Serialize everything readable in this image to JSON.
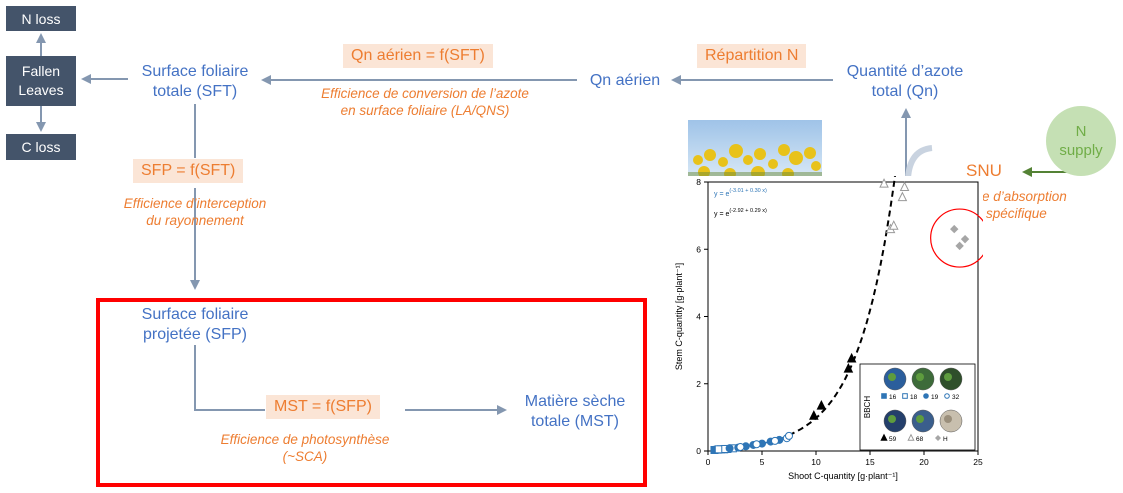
{
  "left_boxes": {
    "n_loss": "N loss",
    "fallen_leaves_1": "Fallen",
    "fallen_leaves_2": "Leaves",
    "c_loss": "C loss"
  },
  "nodes": {
    "sft_1": "Surface foliaire",
    "sft_2": "totale (SFT)",
    "sfp_1": "Surface foliaire",
    "sfp_2": "projetée (SFP)",
    "mst_1": "Matière sèche",
    "mst_2": "totale (MST)",
    "qn_aerien": "Qn aérien",
    "qn_total_1": "Quantité d’azote",
    "qn_total_2": "total (Qn)",
    "n_supply_1": "N",
    "n_supply_2": "supply",
    "snu": "SNU"
  },
  "formulas": {
    "qn_aerien_f": "Qn aérien = f(SFT)",
    "repartition": "Répartition N",
    "sfp_f": "SFP = f(SFT)",
    "mst_f": "MST = f(SFP)"
  },
  "notes": {
    "conv_1": "Efficience de conversion de l’azote",
    "conv_2": "en surface foliaire (LA/QNS)",
    "interc_1": "Efficience d’interception",
    "interc_2": "du rayonnement",
    "photo_1": "Efficience de photosynthèse",
    "photo_2": "(~SCA)",
    "absorp_1": "e d’absorption",
    "absorp_2": "spécifique"
  },
  "colors": {
    "dark_box": "#44546a",
    "node_blue": "#4472c4",
    "formula_bg": "#fbe5d6",
    "formula_text": "#ed7d31",
    "arrow": "#8497b0",
    "highlight_red": "#ff0000",
    "n_supply_fill": "#c5e0b4",
    "n_supply_text": "#70ad47"
  },
  "chart_data": {
    "type": "scatter",
    "xlabel": "Shoot C-quantity [g·plant⁻¹]",
    "ylabel": "Stem C-quantity [g·plant⁻¹]",
    "xlim": [
      0,
      25
    ],
    "ylim": [
      0,
      8
    ],
    "xticks": [
      "0",
      "5",
      "10",
      "15",
      "20",
      "25"
    ],
    "yticks": [
      "0",
      "2",
      "4",
      "6",
      "8"
    ],
    "equations": [
      {
        "prefix": "y = e",
        "exponent": "(-3.01 + 0.30 x)",
        "color": "#2e75b6"
      },
      {
        "prefix": "y = e",
        "exponent": "(-2.92 + 0.29 x)",
        "color": "#000000"
      }
    ],
    "fit_curves": [
      {
        "a": -3.01,
        "b": 0.3,
        "x_range": [
          0.5,
          7.5
        ],
        "style": "solid",
        "color": "#2e75b6"
      },
      {
        "a": -2.92,
        "b": 0.29,
        "x_range": [
          7.5,
          18.3
        ],
        "style": "dashed",
        "color": "#000000"
      }
    ],
    "series": [
      {
        "name": "16",
        "marker": "square-filled",
        "color": "#2e75b6",
        "points": [
          [
            0.6,
            0.03
          ],
          [
            0.9,
            0.04
          ],
          [
            1.2,
            0.05
          ],
          [
            1.5,
            0.05
          ],
          [
            1.8,
            0.06
          ]
        ]
      },
      {
        "name": "18",
        "marker": "square-open",
        "color": "#2e75b6",
        "points": [
          [
            1.0,
            0.05
          ],
          [
            1.6,
            0.06
          ],
          [
            2.3,
            0.08
          ]
        ]
      },
      {
        "name": "19",
        "marker": "circle-filled",
        "color": "#2e75b6",
        "points": [
          [
            2.0,
            0.08
          ],
          [
            2.8,
            0.1
          ],
          [
            3.5,
            0.14
          ],
          [
            4.2,
            0.18
          ],
          [
            5.0,
            0.22
          ],
          [
            5.8,
            0.28
          ],
          [
            6.6,
            0.33
          ]
        ]
      },
      {
        "name": "32",
        "marker": "circle-open",
        "color": "#2e75b6",
        "points": [
          [
            3.0,
            0.12
          ],
          [
            4.5,
            0.2
          ],
          [
            6.2,
            0.3
          ],
          [
            7.3,
            0.38
          ],
          [
            7.5,
            0.45
          ]
        ]
      },
      {
        "name": "59",
        "marker": "triangle-filled",
        "color": "#000000",
        "points": [
          [
            9.8,
            1.05
          ],
          [
            10.5,
            1.35
          ],
          [
            13.0,
            2.45
          ],
          [
            13.3,
            2.75
          ]
        ]
      },
      {
        "name": "68",
        "marker": "triangle-open",
        "color": "#999999",
        "points": [
          [
            16.3,
            7.95
          ],
          [
            16.9,
            6.6
          ],
          [
            17.2,
            6.7
          ],
          [
            18.0,
            7.55
          ],
          [
            18.2,
            7.85
          ]
        ]
      },
      {
        "name": "H",
        "marker": "diamond-filled",
        "color": "#a6a6a6",
        "points": [
          [
            22.8,
            6.6
          ],
          [
            23.3,
            6.1
          ],
          [
            23.8,
            6.3
          ]
        ]
      }
    ],
    "legend_title": "BBCH",
    "legend_placement": "bottom-right",
    "legend_rows": [
      [
        "16",
        "18",
        "19",
        "32"
      ],
      [
        "59",
        "68",
        "H"
      ]
    ]
  }
}
